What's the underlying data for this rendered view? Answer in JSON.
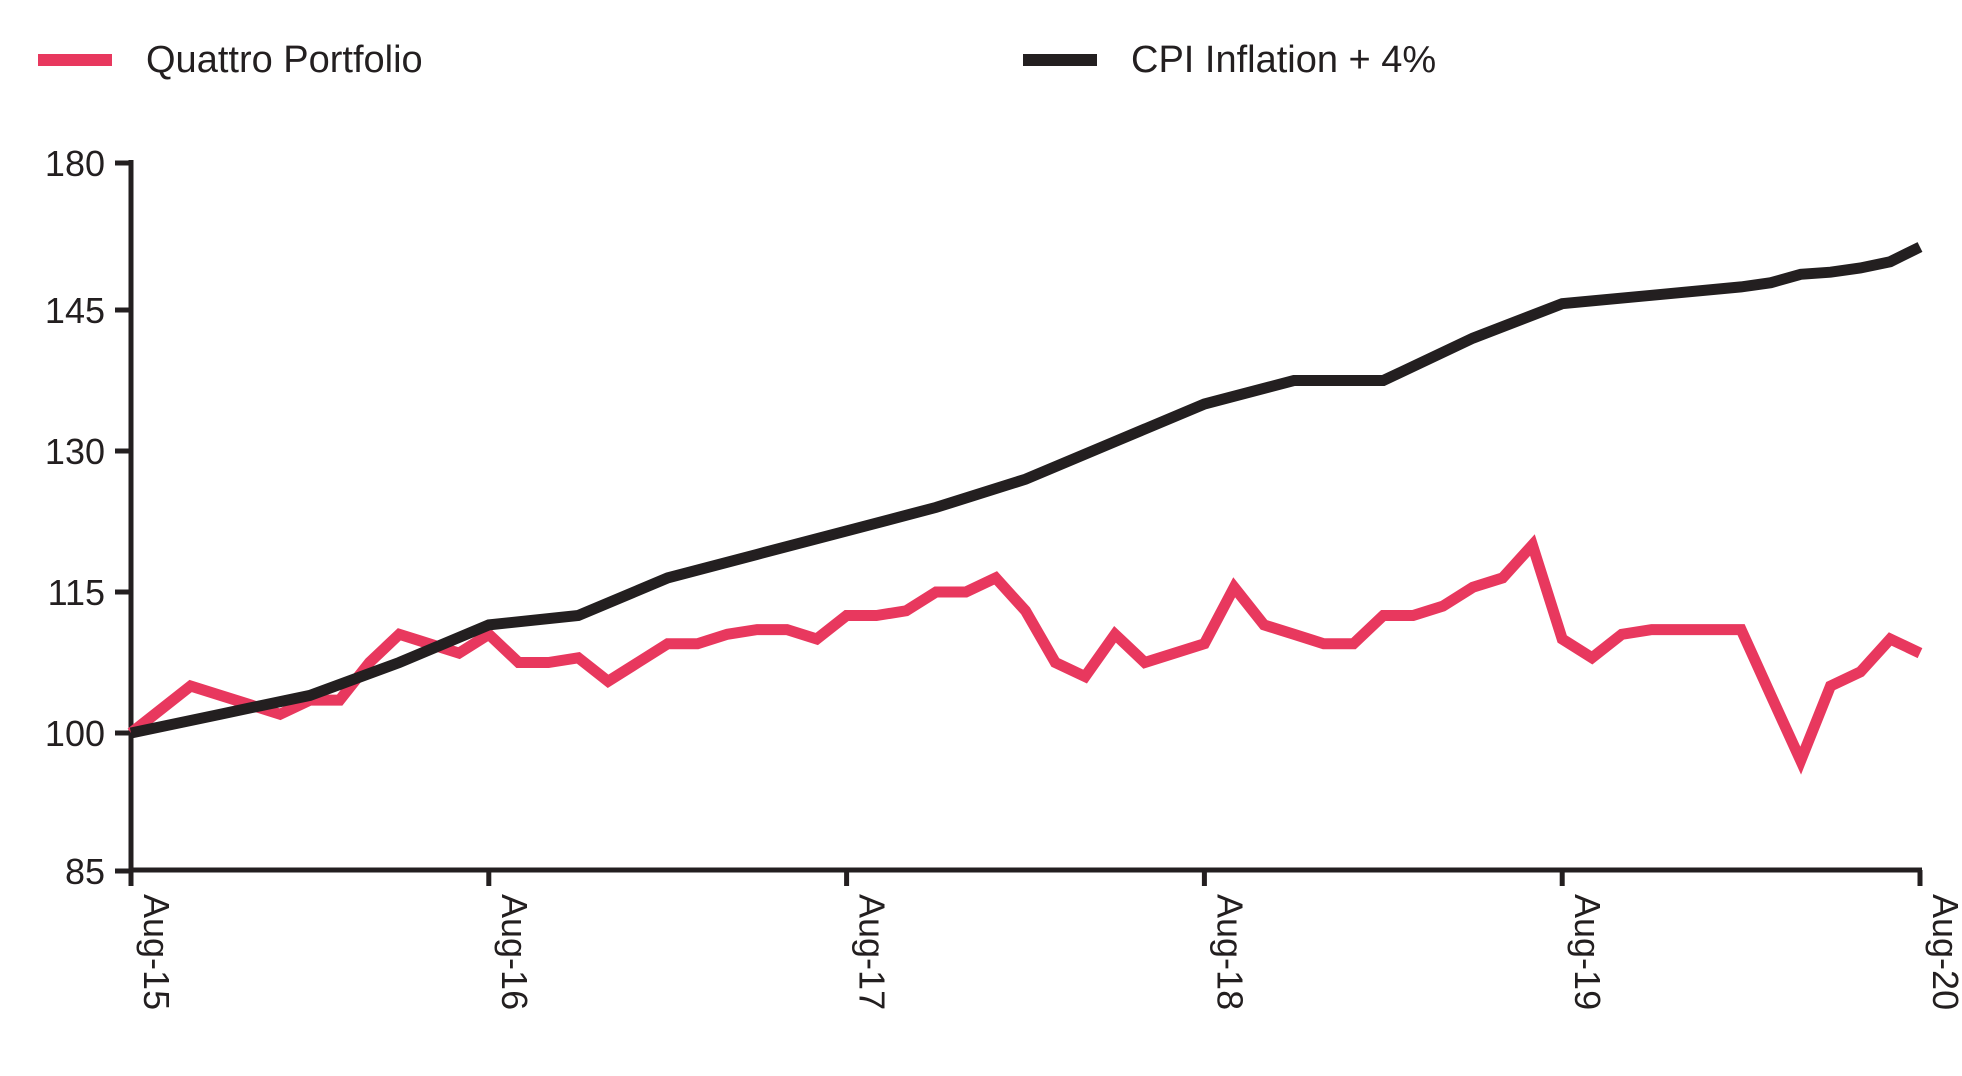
{
  "chart_data": {
    "type": "line",
    "title": "",
    "xlabel": "",
    "ylabel": "",
    "ylim": [
      85,
      180
    ],
    "yticks": [
      85,
      100,
      115,
      130,
      145,
      180
    ],
    "xticks": [
      "Aug-15",
      "Aug-16",
      "Aug-17",
      "Aug-18",
      "Aug-19",
      "Aug-20"
    ],
    "xrange": [
      0,
      60
    ],
    "legend_position": "top",
    "series": [
      {
        "name": "Quattro Portfolio",
        "color": "#e8385e",
        "x": [
          0,
          2,
          3,
          4,
          5,
          6,
          7,
          8,
          9,
          10,
          11,
          12,
          13,
          14,
          15,
          16,
          17,
          18,
          19,
          20,
          21,
          22,
          23,
          24,
          25,
          26,
          27,
          28,
          29,
          30,
          31,
          32,
          33,
          34,
          35,
          36,
          37,
          38,
          39,
          40,
          41,
          42,
          43,
          44,
          45,
          46,
          47,
          48,
          49,
          50,
          51,
          52,
          53,
          54,
          55,
          56,
          57,
          58,
          59,
          60
        ],
        "values": [
          100,
          105,
          104,
          103,
          102,
          103.5,
          103.5,
          107.5,
          110.5,
          109.5,
          108.5,
          110.5,
          107.5,
          107.5,
          108,
          105.5,
          107.5,
          109.5,
          109.5,
          110.5,
          111,
          111,
          110,
          112.5,
          112.5,
          113,
          115,
          115,
          116.5,
          113,
          107.5,
          106,
          110.5,
          107.5,
          108.5,
          109.5,
          115.5,
          111.5,
          110.5,
          109.5,
          109.5,
          112.5,
          112.5,
          113.5,
          115.5,
          116.5,
          120,
          110,
          108,
          110.5,
          111,
          111,
          111,
          111,
          104,
          97,
          105,
          106.5,
          110,
          108.5
        ]
      },
      {
        "name": "CPI Inflation + 4%",
        "color": "#231f20",
        "x": [
          0,
          3,
          6,
          9,
          12,
          15,
          18,
          21,
          24,
          27,
          30,
          33,
          36,
          39,
          42,
          45,
          48,
          51,
          54,
          55,
          56,
          57,
          58,
          59,
          60
        ],
        "values": [
          100,
          102,
          104,
          107.5,
          111.5,
          112.5,
          116.5,
          119,
          121.5,
          124,
          127,
          131,
          135,
          137.5,
          137.5,
          142,
          146.5,
          148.5,
          150.5,
          151.5,
          153.5,
          154,
          155,
          156.5,
          160
        ]
      }
    ]
  }
}
